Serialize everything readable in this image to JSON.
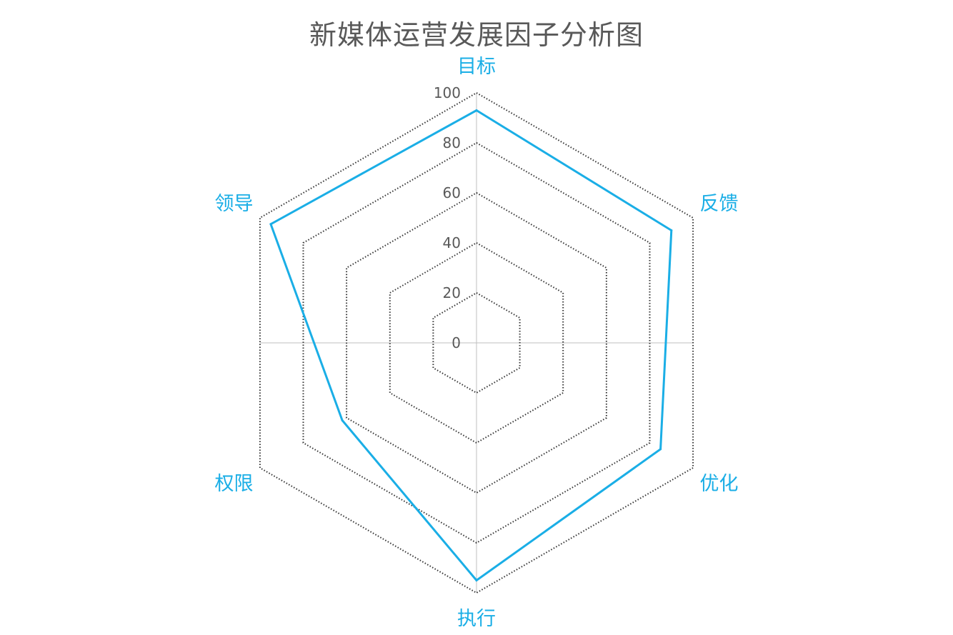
{
  "chart_data": {
    "type": "radar",
    "title": "新媒体运营发展因子分析图",
    "categories": [
      "目标",
      "反馈",
      "优化",
      "执行",
      "权限",
      "领导"
    ],
    "series": [
      {
        "values": [
          93,
          90,
          85,
          95,
          62,
          95
        ]
      }
    ],
    "r_ticks": [
      0,
      20,
      40,
      60,
      80,
      100
    ],
    "rlim": [
      0,
      100
    ],
    "grid": true,
    "grid_style": "dotted",
    "colors": {
      "series": "#1aaee6",
      "category_label": "#1aaee6",
      "grid": "#333333",
      "axis": "#bfbfbf",
      "tick_text": "#595959",
      "title": "#595959"
    }
  }
}
